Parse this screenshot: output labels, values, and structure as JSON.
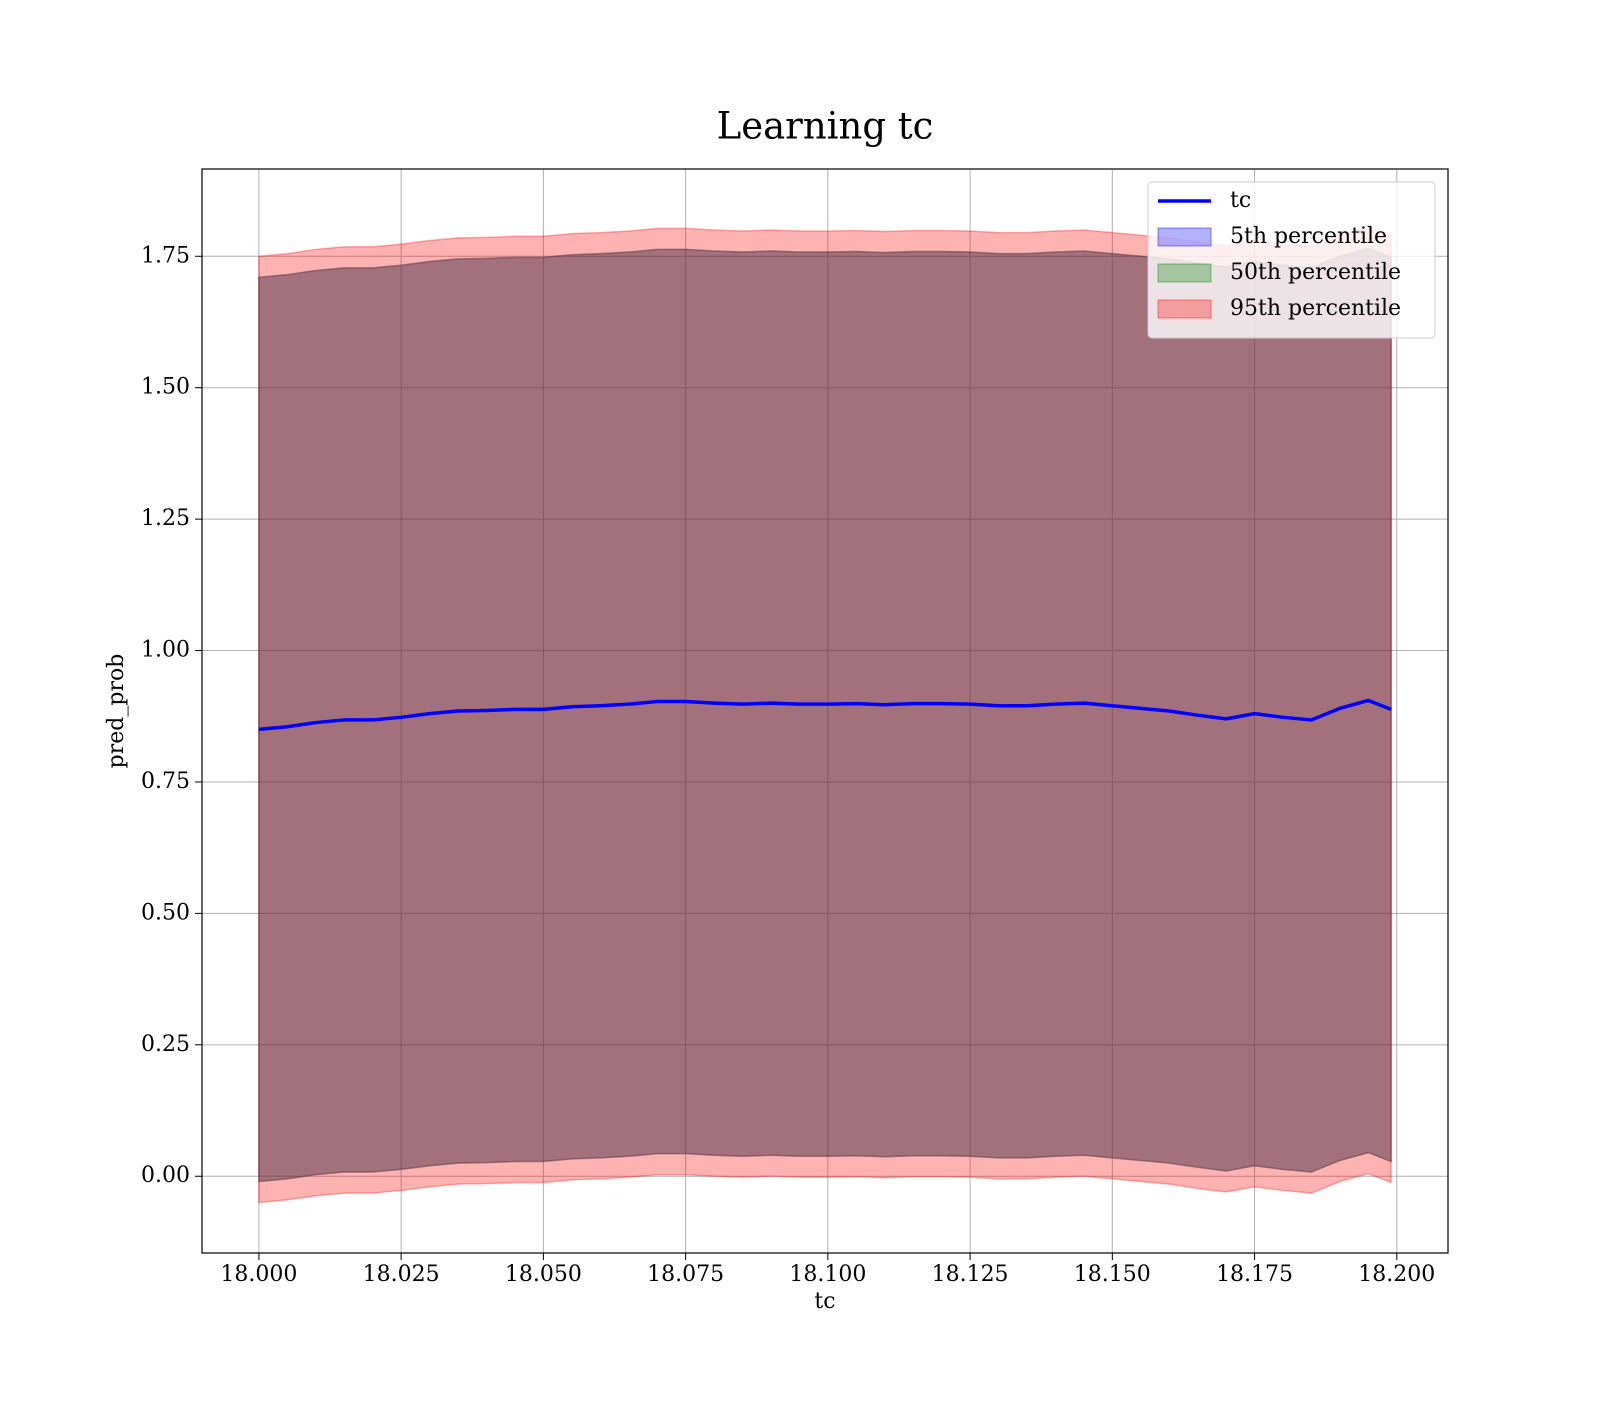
{
  "chart_data": {
    "type": "line",
    "title": "Learning tc",
    "xlabel": "tc",
    "ylabel": "pred_prob",
    "x": [
      18.0,
      18.005,
      18.01,
      18.015,
      18.02,
      18.025,
      18.03,
      18.035,
      18.04,
      18.045,
      18.05,
      18.055,
      18.06,
      18.065,
      18.07,
      18.075,
      18.08,
      18.085,
      18.09,
      18.095,
      18.1,
      18.105,
      18.11,
      18.115,
      18.12,
      18.125,
      18.13,
      18.135,
      18.14,
      18.145,
      18.15,
      18.155,
      18.16,
      18.165,
      18.17,
      18.175,
      18.18,
      18.185,
      18.19,
      18.195,
      18.199
    ],
    "series": [
      {
        "name": "tc",
        "color": "#0000ff",
        "values": [
          0.85,
          0.855,
          0.863,
          0.868,
          0.868,
          0.873,
          0.88,
          0.885,
          0.886,
          0.888,
          0.888,
          0.893,
          0.895,
          0.898,
          0.903,
          0.903,
          0.9,
          0.898,
          0.9,
          0.898,
          0.898,
          0.899,
          0.897,
          0.899,
          0.899,
          0.898,
          0.895,
          0.895,
          0.898,
          0.9,
          0.895,
          0.89,
          0.885,
          0.877,
          0.87,
          0.88,
          0.873,
          0.868,
          0.89,
          0.905,
          0.888
        ]
      }
    ],
    "bands": [
      {
        "name": "5th percentile",
        "color": "#0000ff",
        "upper": [
          1.71,
          1.715,
          1.723,
          1.728,
          1.728,
          1.733,
          1.74,
          1.745,
          1.746,
          1.748,
          1.748,
          1.753,
          1.755,
          1.758,
          1.763,
          1.763,
          1.76,
          1.758,
          1.76,
          1.758,
          1.758,
          1.759,
          1.757,
          1.759,
          1.759,
          1.758,
          1.755,
          1.755,
          1.758,
          1.76,
          1.755,
          1.75,
          1.745,
          1.737,
          1.73,
          1.74,
          1.733,
          1.728,
          1.75,
          1.765,
          1.748
        ],
        "lower": [
          -0.01,
          -0.005,
          0.003,
          0.008,
          0.008,
          0.013,
          0.02,
          0.025,
          0.026,
          0.028,
          0.028,
          0.033,
          0.035,
          0.038,
          0.043,
          0.043,
          0.04,
          0.038,
          0.04,
          0.038,
          0.038,
          0.039,
          0.037,
          0.039,
          0.039,
          0.038,
          0.035,
          0.035,
          0.038,
          0.04,
          0.035,
          0.03,
          0.025,
          0.017,
          0.01,
          0.02,
          0.013,
          0.008,
          0.03,
          0.045,
          0.028
        ]
      },
      {
        "name": "50th percentile",
        "color": "#008000",
        "upper": [
          1.71,
          1.715,
          1.723,
          1.728,
          1.728,
          1.733,
          1.74,
          1.745,
          1.746,
          1.748,
          1.748,
          1.753,
          1.755,
          1.758,
          1.763,
          1.763,
          1.76,
          1.758,
          1.76,
          1.758,
          1.758,
          1.759,
          1.757,
          1.759,
          1.759,
          1.758,
          1.755,
          1.755,
          1.758,
          1.76,
          1.755,
          1.75,
          1.745,
          1.737,
          1.73,
          1.74,
          1.733,
          1.728,
          1.75,
          1.765,
          1.748
        ],
        "lower": [
          -0.01,
          -0.005,
          0.003,
          0.008,
          0.008,
          0.013,
          0.02,
          0.025,
          0.026,
          0.028,
          0.028,
          0.033,
          0.035,
          0.038,
          0.043,
          0.043,
          0.04,
          0.038,
          0.04,
          0.038,
          0.038,
          0.039,
          0.037,
          0.039,
          0.039,
          0.038,
          0.035,
          0.035,
          0.038,
          0.04,
          0.035,
          0.03,
          0.025,
          0.017,
          0.01,
          0.02,
          0.013,
          0.008,
          0.03,
          0.045,
          0.028
        ]
      },
      {
        "name": "95th percentile",
        "color": "#ff0000",
        "upper": [
          1.75,
          1.755,
          1.763,
          1.768,
          1.768,
          1.773,
          1.78,
          1.785,
          1.786,
          1.788,
          1.788,
          1.793,
          1.795,
          1.798,
          1.803,
          1.803,
          1.8,
          1.798,
          1.8,
          1.798,
          1.798,
          1.799,
          1.797,
          1.799,
          1.799,
          1.798,
          1.795,
          1.795,
          1.798,
          1.8,
          1.795,
          1.79,
          1.785,
          1.777,
          1.77,
          1.78,
          1.773,
          1.768,
          1.79,
          1.805,
          1.788
        ],
        "lower": [
          -0.05,
          -0.045,
          -0.037,
          -0.032,
          -0.032,
          -0.027,
          -0.02,
          -0.015,
          -0.014,
          -0.012,
          -0.012,
          -0.007,
          -0.005,
          -0.002,
          0.003,
          0.003,
          0.0,
          -0.002,
          0.0,
          -0.002,
          -0.002,
          -0.001,
          -0.003,
          -0.001,
          -0.001,
          -0.002,
          -0.005,
          -0.005,
          -0.002,
          0.0,
          -0.005,
          -0.01,
          -0.015,
          -0.023,
          -0.03,
          -0.02,
          -0.027,
          -0.032,
          -0.01,
          0.005,
          -0.012
        ]
      }
    ],
    "band_alpha": 0.3,
    "xlim": [
      17.99,
      18.209
    ],
    "ylim": [
      -0.146,
      1.916
    ],
    "xticks": [
      {
        "value": 18.0,
        "label": "18.000"
      },
      {
        "value": 18.025,
        "label": "18.025"
      },
      {
        "value": 18.05,
        "label": "18.050"
      },
      {
        "value": 18.075,
        "label": "18.075"
      },
      {
        "value": 18.1,
        "label": "18.100"
      },
      {
        "value": 18.125,
        "label": "18.125"
      },
      {
        "value": 18.15,
        "label": "18.150"
      },
      {
        "value": 18.175,
        "label": "18.175"
      },
      {
        "value": 18.2,
        "label": "18.200"
      }
    ],
    "yticks": [
      {
        "value": 0,
        "label": "0.00"
      },
      0.25,
      {
        "value": 0.5,
        "label": "0.50"
      },
      0.75,
      {
        "value": 1,
        "label": "1.00"
      },
      1.25,
      {
        "value": 1.5,
        "label": "1.50"
      },
      1.75
    ],
    "grid": true,
    "legend": "upper right"
  }
}
